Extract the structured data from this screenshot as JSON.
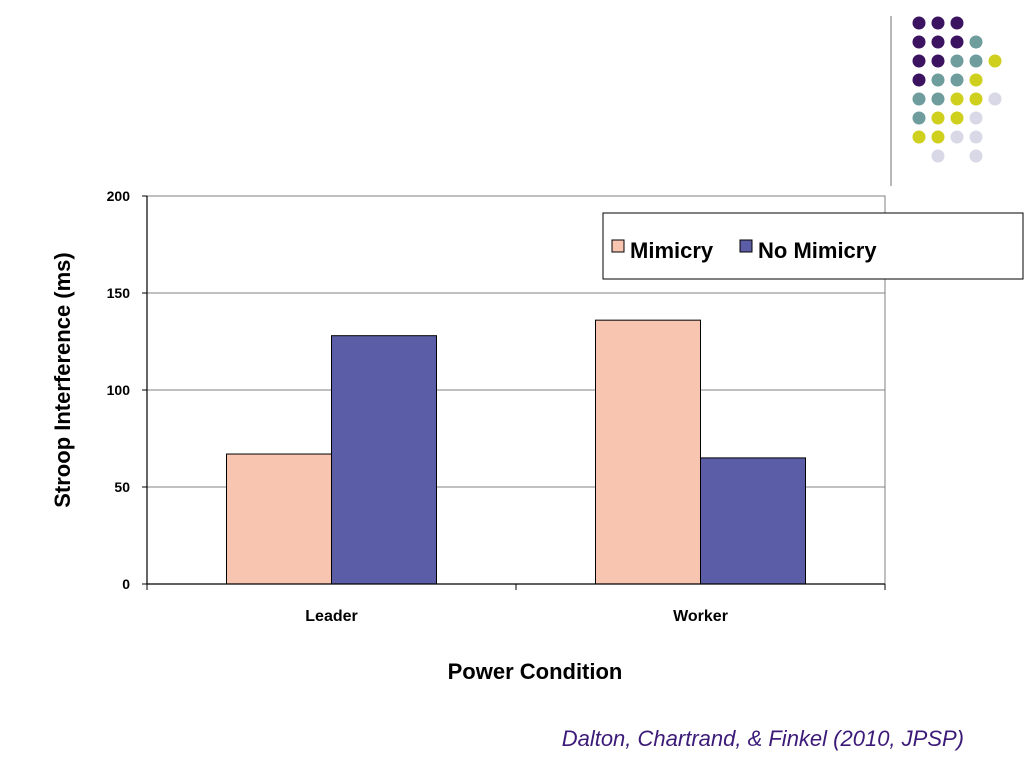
{
  "chart_data": {
    "type": "bar",
    "categories": [
      "Leader",
      "Worker"
    ],
    "series": [
      {
        "name": "Mimicry",
        "values": [
          67,
          136
        ],
        "color": "#f7c5b0"
      },
      {
        "name": "No Mimicry",
        "values": [
          128,
          65
        ],
        "color": "#5b5ea6"
      }
    ],
    "xlabel": "Power Condition",
    "ylabel": "Stroop Interference (ms)",
    "ylim": [
      0,
      200
    ],
    "yticks": [
      0,
      50,
      100,
      150,
      200
    ],
    "grid": true,
    "legend_position": "top-right"
  },
  "citation": "Dalton, Chartrand, & Finkel (2010, JPSP)",
  "decoration": {
    "dot_colors": {
      "purple": "#3c1361",
      "teal": "#6f9c9c",
      "yellow": "#cfcf1e",
      "lavender": "#d8d8e6"
    }
  }
}
